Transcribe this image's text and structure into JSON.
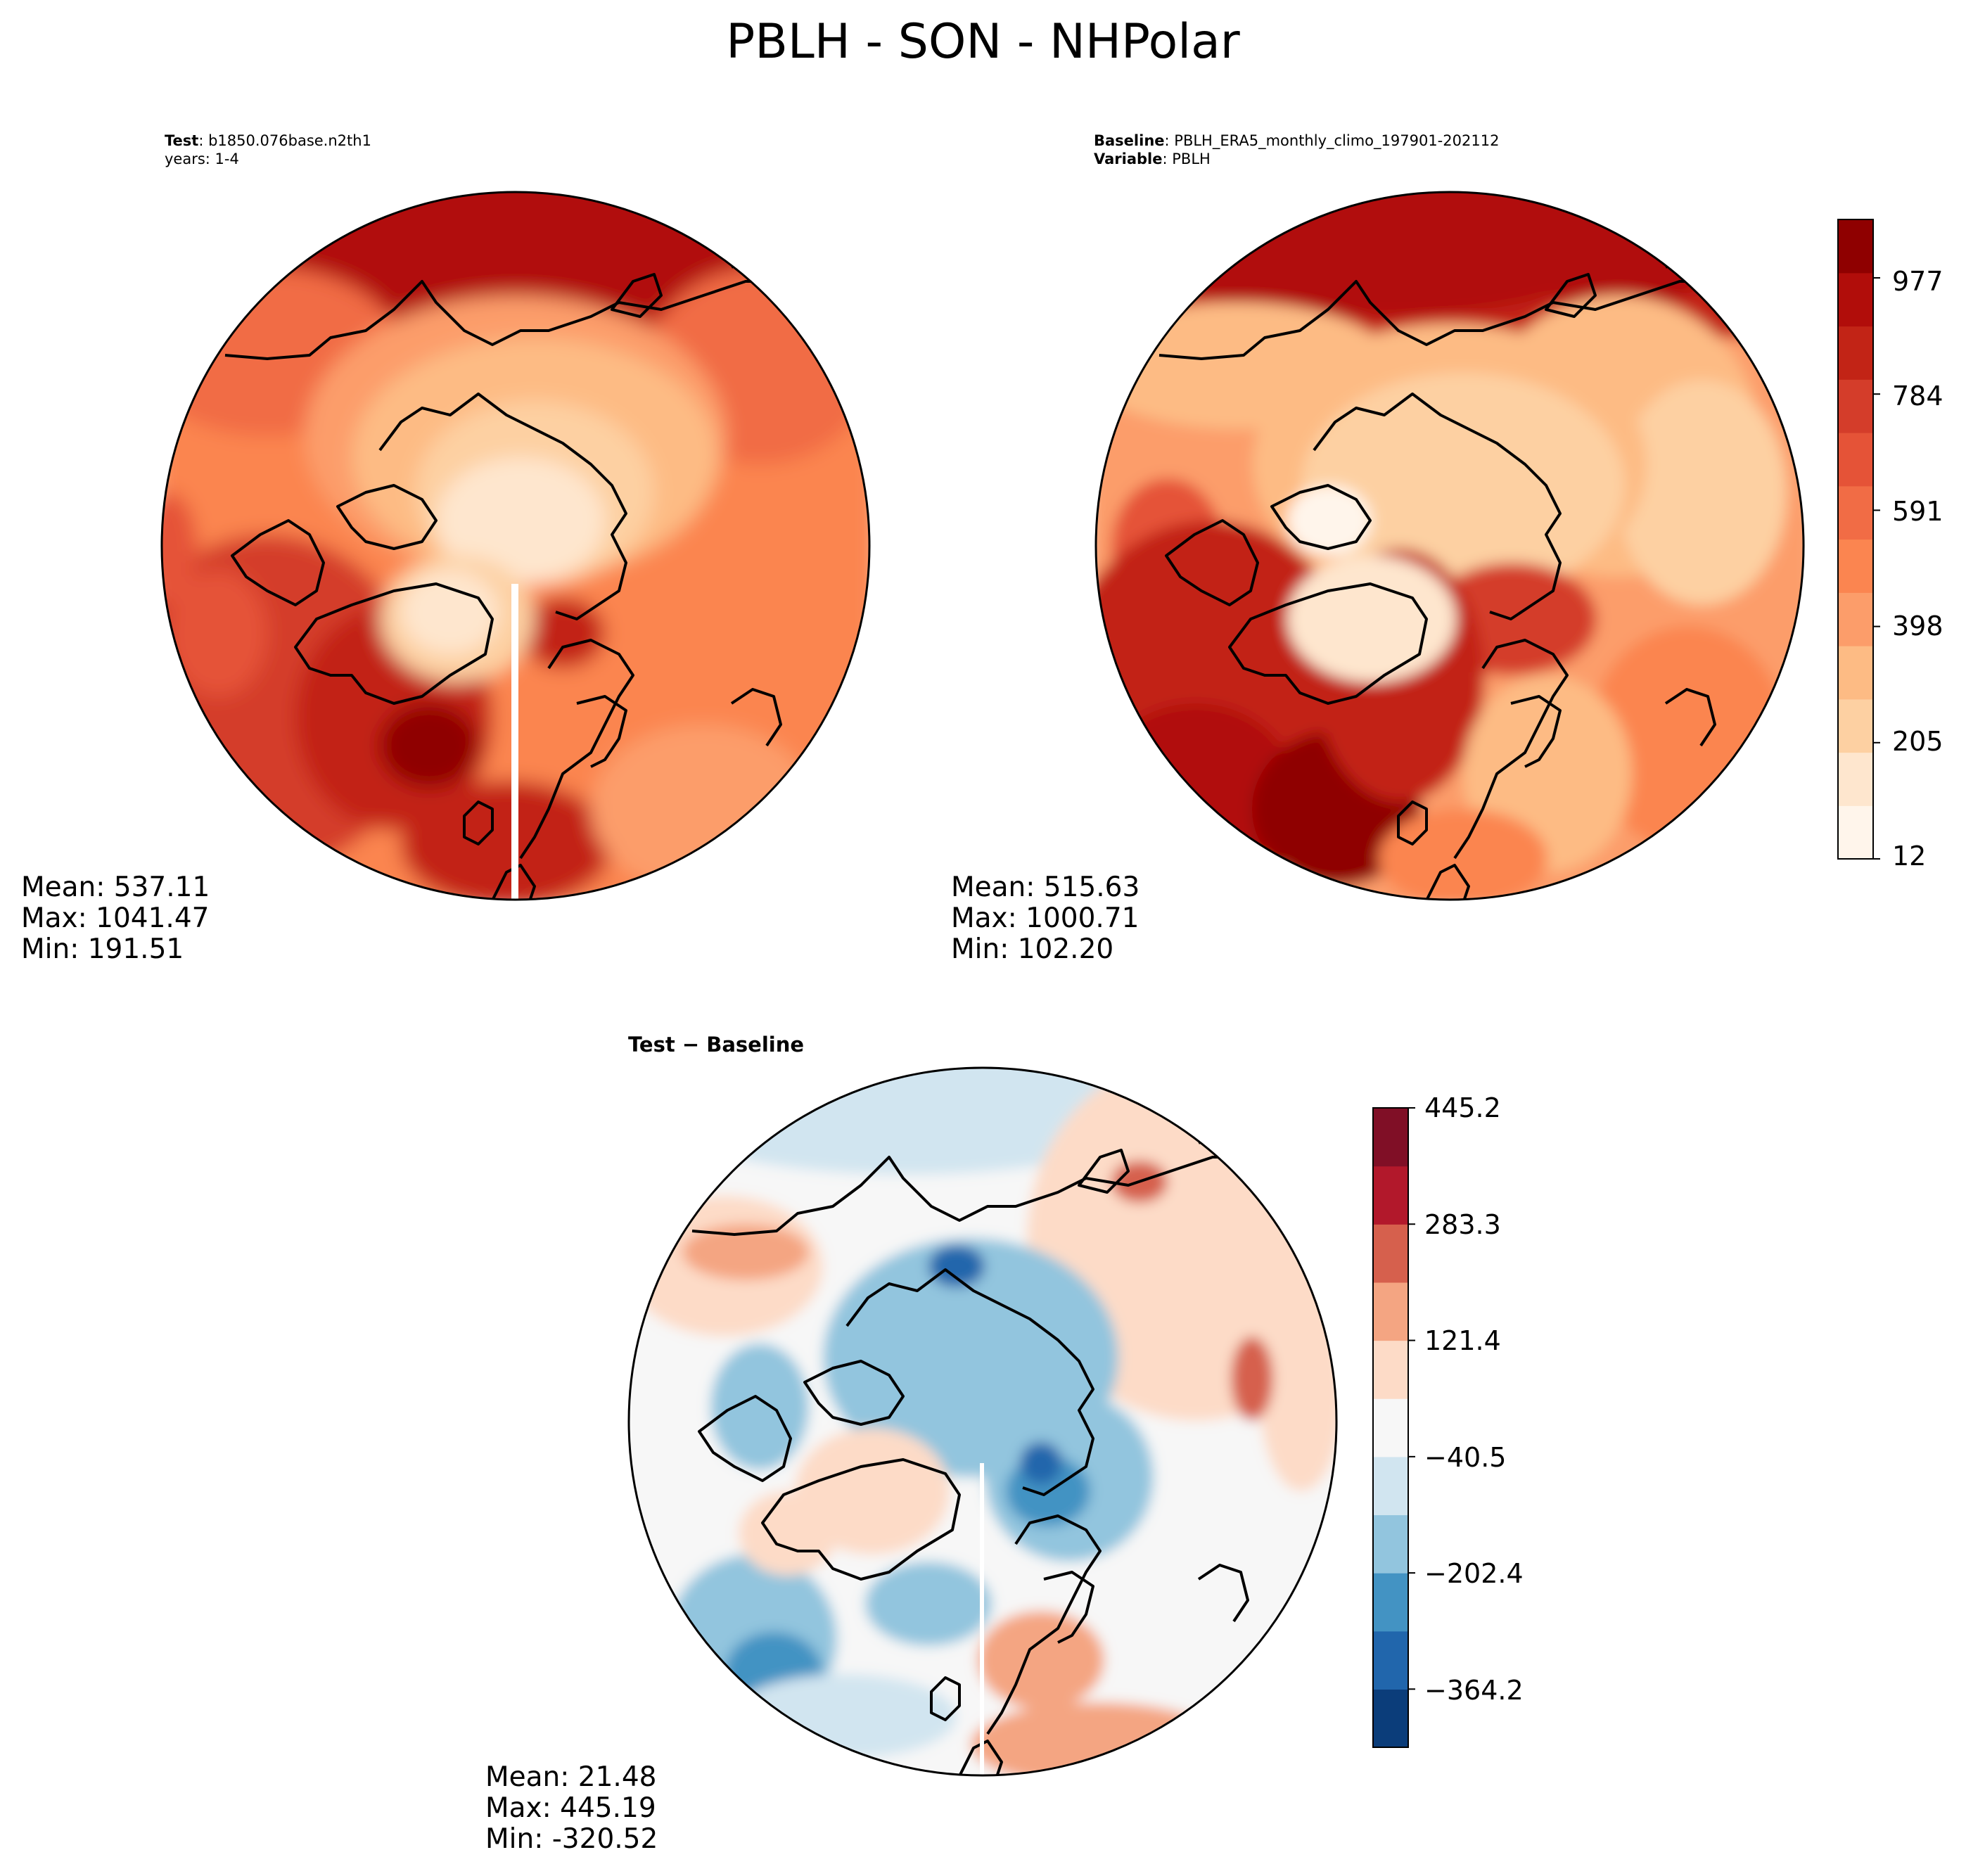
{
  "figure": {
    "title": "PBLH - SON - NHPolar"
  },
  "panels": {
    "test": {
      "header_key": "Test",
      "header_value": "b1850.076base.n2th1",
      "header_line2": "years: 1-4",
      "mean": "Mean: 537.11",
      "max": "Max: 1041.47",
      "min": "Min: 191.51"
    },
    "baseline": {
      "header_key": "Baseline",
      "header_value": "PBLH_ERA5_monthly_climo_197901-202112",
      "header_key2": "Variable",
      "header_value2": "PBLH",
      "mean": "Mean: 515.63",
      "max": "Max: 1000.71",
      "min": "Min: 102.20"
    },
    "diff": {
      "header": "Test − Baseline",
      "mean": "Mean: 21.48",
      "max": "Max: 445.19",
      "min": "Min: -320.52"
    }
  },
  "chart_data": [
    {
      "type": "heatmap",
      "name": "Test",
      "projection": "north-polar-stereographic",
      "field_mean": 537.11,
      "field_max": 1041.47,
      "field_min": 191.51
    },
    {
      "type": "heatmap",
      "name": "Baseline",
      "projection": "north-polar-stereographic",
      "field_mean": 515.63,
      "field_max": 1000.71,
      "field_min": 102.2
    },
    {
      "type": "heatmap",
      "name": "Test - Baseline",
      "projection": "north-polar-stereographic",
      "field_mean": 21.48,
      "field_max": 445.19,
      "field_min": -320.52
    }
  ],
  "colorbars": {
    "main": {
      "cmap": "OrRd",
      "ticks": [
        "12",
        "205",
        "398",
        "591",
        "784",
        "977"
      ],
      "tick_values": [
        12,
        205,
        398,
        591,
        784,
        977
      ],
      "range": [
        12,
        1074
      ],
      "colors": [
        "#fff5eb",
        "#fee6ce",
        "#fdd0a2",
        "#fdbb84",
        "#fc9d6a",
        "#fb8550",
        "#f16c45",
        "#e55337",
        "#d43d2a",
        "#c22416",
        "#b10d0a",
        "#8f0000"
      ]
    },
    "diff": {
      "cmap": "RdBu_r",
      "ticks": [
        "445.2",
        "283.3",
        "121.4",
        "−40.5",
        "−202.4",
        "−364.2"
      ],
      "tick_values": [
        445.2,
        283.3,
        121.4,
        -40.5,
        -202.4,
        -364.2
      ],
      "range": [
        -445.2,
        445.2
      ],
      "colors": [
        "#0b3d7a",
        "#2166ac",
        "#4393c3",
        "#92c5de",
        "#d1e5f0",
        "#f7f7f7",
        "#fddbc7",
        "#f4a582",
        "#d6604d",
        "#b2182b",
        "#800f26"
      ]
    }
  }
}
